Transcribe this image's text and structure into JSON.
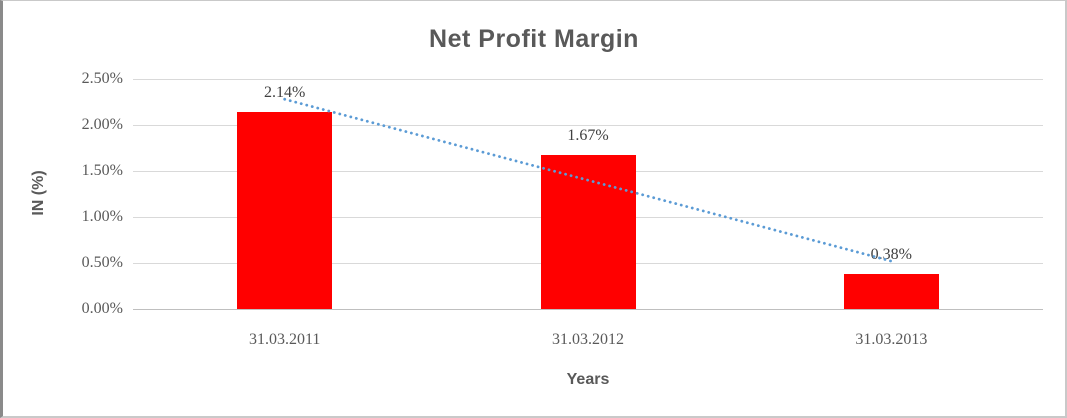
{
  "chart_data": {
    "type": "bar",
    "title": "Net Profit Margin",
    "xlabel": "Years",
    "ylabel": "IN (%)",
    "categories": [
      "31.03.2011",
      "31.03.2012",
      "31.03.2013"
    ],
    "values": [
      2.14,
      1.67,
      0.38
    ],
    "data_labels": [
      "2.14%",
      "1.67%",
      "0.38%"
    ],
    "ytick_labels": [
      "0.00%",
      "0.50%",
      "1.00%",
      "1.50%",
      "2.00%",
      "2.50%"
    ],
    "ytick_values": [
      0,
      0.5,
      1.0,
      1.5,
      2.0,
      2.5
    ],
    "ylim": [
      0,
      2.5
    ],
    "grid": true,
    "legend": "none",
    "bar_color": "#FF0000",
    "trendline": {
      "type": "linear",
      "style": "dotted",
      "color": "#5B9BD5",
      "start_value": 2.28,
      "end_value": 0.52
    },
    "colors": {
      "title_text": "#595959",
      "axis_text": "#595959",
      "data_label_text": "#404040",
      "gridline": "#D9D9D9",
      "axis_line": "#BFBFBF"
    }
  }
}
